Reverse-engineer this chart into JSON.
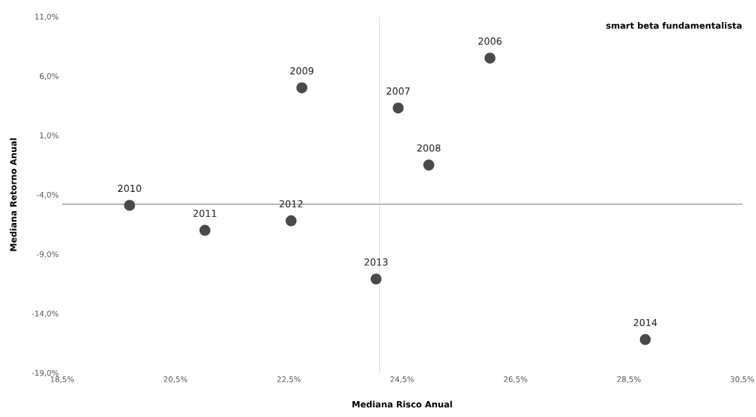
{
  "chart_data": {
    "type": "scatter",
    "title": "smart beta fundamentalista",
    "xlabel": "Mediana Risco Anual",
    "ylabel": "Mediana Retorno Anual",
    "x": [
      26.05,
      24.43,
      24.97,
      22.73,
      19.69,
      21.02,
      22.54,
      24.04,
      28.79
    ],
    "series": [
      {
        "color": "#4a4a4a",
        "values": [
          7.5,
          3.3,
          -1.5,
          5.0,
          -4.9,
          -7.0,
          -6.2,
          -11.1,
          -16.2
        ]
      }
    ],
    "annotations": [
      {
        "text": "2006",
        "x": 26.05,
        "y": 7.5
      },
      {
        "text": "2007",
        "x": 24.43,
        "y": 3.3
      },
      {
        "text": "2008",
        "x": 24.97,
        "y": -1.5
      },
      {
        "text": "2009",
        "x": 22.73,
        "y": 5.0
      },
      {
        "text": "2010",
        "x": 19.69,
        "y": -4.9
      },
      {
        "text": "2011",
        "x": 21.02,
        "y": -7.0
      },
      {
        "text": "2012",
        "x": 22.54,
        "y": -6.2
      },
      {
        "text": "2013",
        "x": 24.04,
        "y": -11.1
      },
      {
        "text": "2014",
        "x": 28.79,
        "y": -16.2
      }
    ],
    "xlim": [
      18.5,
      30.5
    ],
    "ylim": [
      -19,
      11
    ],
    "xticks": [
      {
        "value": 18.5,
        "label": "18,5%"
      },
      {
        "value": 20.5,
        "label": "20,5%"
      },
      {
        "value": 22.5,
        "label": "22,5%"
      },
      {
        "value": 24.5,
        "label": "24,5%"
      },
      {
        "value": 26.5,
        "label": "26,5%"
      },
      {
        "value": 28.5,
        "label": "28,5%"
      },
      {
        "value": 30.5,
        "label": "30,5%"
      }
    ],
    "yticks": [
      {
        "value": -19,
        "label": "-19,0%"
      },
      {
        "value": -14,
        "label": "-14,0%"
      },
      {
        "value": -9,
        "label": "-9,0%"
      },
      {
        "value": -4,
        "label": "-4,0%"
      },
      {
        "value": 1,
        "label": "1,0%"
      },
      {
        "value": 6,
        "label": "6,0%"
      },
      {
        "value": 11,
        "label": "11,0%"
      }
    ],
    "ref_lines": [
      {
        "axis": "y",
        "value": -4.8,
        "color": "#999999"
      },
      {
        "axis": "x",
        "value": 24.1,
        "color": "#dddddd"
      }
    ],
    "marker": "circle",
    "grid": false,
    "legend": false
  }
}
